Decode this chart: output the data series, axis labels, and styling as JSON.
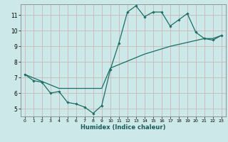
{
  "xlabel": "Humidex (Indice chaleur)",
  "ylabel": "",
  "bg_color": "#cce8e8",
  "line_color": "#1a6e64",
  "grid_color": "#c8b8b8",
  "xlim": [
    -0.5,
    23.5
  ],
  "ylim": [
    4.5,
    11.7
  ],
  "yticks": [
    5,
    6,
    7,
    8,
    9,
    10,
    11
  ],
  "xticks": [
    0,
    1,
    2,
    3,
    4,
    5,
    6,
    7,
    8,
    9,
    10,
    11,
    12,
    13,
    14,
    15,
    16,
    17,
    18,
    19,
    20,
    21,
    22,
    23
  ],
  "line1_x": [
    0,
    1,
    2,
    3,
    4,
    5,
    6,
    7,
    8,
    9,
    10,
    11,
    12,
    13,
    14,
    15,
    16,
    17,
    18,
    19,
    20,
    21,
    22,
    23
  ],
  "line1_y": [
    7.2,
    6.8,
    6.7,
    6.0,
    6.1,
    5.4,
    5.3,
    5.1,
    4.7,
    5.2,
    7.5,
    9.2,
    11.2,
    11.6,
    10.9,
    11.2,
    11.2,
    10.3,
    10.7,
    11.1,
    9.9,
    9.5,
    9.4,
    9.7
  ],
  "line2_x": [
    0,
    4,
    9,
    10,
    14,
    17,
    21,
    22,
    23
  ],
  "line2_y": [
    7.2,
    6.3,
    6.3,
    7.6,
    8.5,
    9.0,
    9.5,
    9.5,
    9.7
  ]
}
